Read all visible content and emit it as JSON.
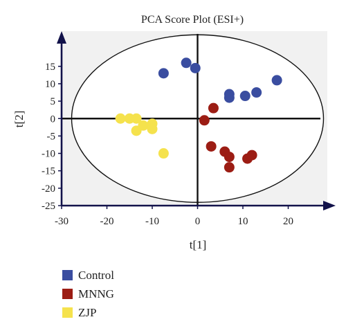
{
  "chart_data": {
    "type": "scatter",
    "title": "PCA Score Plot (ESI+)",
    "xlabel": "t[1]",
    "ylabel": "t[2]",
    "xlim": [
      -30,
      30
    ],
    "ylim": [
      -25,
      20
    ],
    "xticks": [
      -30,
      -20,
      -10,
      0,
      10,
      20
    ],
    "yticks": [
      -25,
      -20,
      -15,
      -10,
      -5,
      0,
      5,
      10,
      15
    ],
    "legend_position": "bottom-left",
    "series": [
      {
        "name": "Control",
        "color": "#3a4da0",
        "points": [
          [
            -7.5,
            13
          ],
          [
            -2.5,
            16
          ],
          [
            -0.5,
            14.5
          ],
          [
            7,
            7
          ],
          [
            7,
            6
          ],
          [
            10.5,
            6.5
          ],
          [
            13,
            7.5
          ],
          [
            17.5,
            11
          ]
        ]
      },
      {
        "name": "MNNG",
        "color": "#9c1d14",
        "points": [
          [
            3.5,
            3
          ],
          [
            1.5,
            -0.5
          ],
          [
            3,
            -8
          ],
          [
            6,
            -9.5
          ],
          [
            7,
            -11
          ],
          [
            11,
            -11.5
          ],
          [
            12,
            -10.5
          ],
          [
            7,
            -14
          ]
        ]
      },
      {
        "name": "ZJP",
        "color": "#f5e24d",
        "points": [
          [
            -17,
            0
          ],
          [
            -15,
            0
          ],
          [
            -13.5,
            0
          ],
          [
            -12,
            -2
          ],
          [
            -10,
            -1.5
          ],
          [
            -10,
            -3
          ],
          [
            -13.5,
            -3.5
          ],
          [
            -7.5,
            -10
          ]
        ]
      }
    ]
  }
}
